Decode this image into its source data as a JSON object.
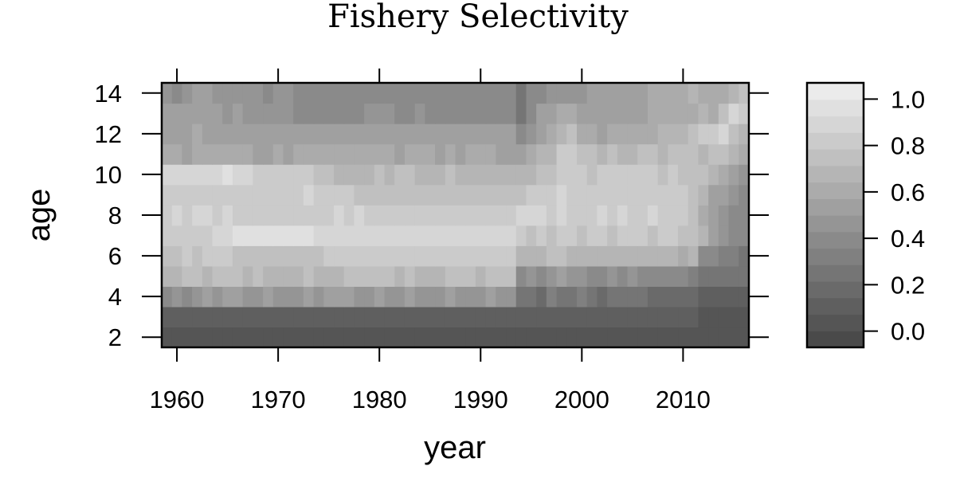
{
  "chart_data": {
    "type": "heatmap",
    "title": "Fishery Selectivity",
    "xlabel": "year",
    "ylabel": "age",
    "x_ticks": [
      1960,
      1970,
      1980,
      1990,
      2000,
      2010
    ],
    "y_ticks": [
      2,
      4,
      6,
      8,
      10,
      12,
      14
    ],
    "xlim": [
      1958.5,
      2016.5
    ],
    "ylim": [
      1.5,
      14.5
    ],
    "colorbar_ticks": [
      0.0,
      0.2,
      0.4,
      0.6,
      0.8,
      1.0
    ],
    "colorbar_tick_labels": [
      "0.0",
      "0.2",
      "0.4",
      "0.6",
      "0.8",
      "1.0"
    ],
    "colorbar_range": [
      -0.07,
      1.07
    ],
    "color_low": "#4a4a4a",
    "color_high": "#ebebeb",
    "grid": false,
    "years": [
      1959,
      1960,
      1961,
      1962,
      1963,
      1964,
      1965,
      1966,
      1967,
      1968,
      1969,
      1970,
      1971,
      1972,
      1973,
      1974,
      1975,
      1976,
      1977,
      1978,
      1979,
      1980,
      1981,
      1982,
      1983,
      1984,
      1985,
      1986,
      1987,
      1988,
      1989,
      1990,
      1991,
      1992,
      1993,
      1994,
      1995,
      1996,
      1997,
      1998,
      1999,
      2000,
      2001,
      2002,
      2003,
      2004,
      2005,
      2006,
      2007,
      2008,
      2009,
      2010,
      2011,
      2012,
      2013,
      2014,
      2015,
      2016
    ],
    "ages": [
      2,
      3,
      4,
      5,
      6,
      7,
      8,
      9,
      10,
      11,
      12,
      13,
      14
    ],
    "values": [
      [
        0,
        0,
        0,
        0,
        0,
        0,
        0,
        0,
        0,
        0,
        0,
        0,
        0,
        0,
        0,
        0,
        0,
        0,
        0,
        0,
        0,
        0,
        0,
        0,
        0,
        0,
        0,
        0,
        0,
        0,
        0,
        0,
        0,
        0,
        0,
        0,
        0,
        0,
        0,
        0,
        0,
        0,
        0,
        0,
        0,
        0,
        0,
        0,
        0,
        0,
        0,
        0,
        0,
        0,
        0,
        0,
        0,
        0
      ],
      [
        0.1,
        0.1,
        0.1,
        0.1,
        0.1,
        0.1,
        0.1,
        0.1,
        0.1,
        0.1,
        0.1,
        0.1,
        0.1,
        0.1,
        0.1,
        0.1,
        0.1,
        0.1,
        0.1,
        0.1,
        0.1,
        0.1,
        0.1,
        0.1,
        0.1,
        0.1,
        0.1,
        0.1,
        0.1,
        0.1,
        0.1,
        0.1,
        0.1,
        0.1,
        0.1,
        0.1,
        0.1,
        0.1,
        0.1,
        0.1,
        0.1,
        0.1,
        0.1,
        0.1,
        0.1,
        0.1,
        0.1,
        0.1,
        0.1,
        0.1,
        0.1,
        0.1,
        0.1,
        0.03,
        0.03,
        0.03,
        0.03,
        0.03
      ],
      [
        0.4,
        0.45,
        0.42,
        0.45,
        0.5,
        0.45,
        0.5,
        0.52,
        0.45,
        0.48,
        0.5,
        0.45,
        0.48,
        0.45,
        0.5,
        0.45,
        0.5,
        0.55,
        0.5,
        0.48,
        0.45,
        0.5,
        0.45,
        0.45,
        0.5,
        0.45,
        0.48,
        0.45,
        0.5,
        0.45,
        0.48,
        0.45,
        0.5,
        0.48,
        0.45,
        0.2,
        0.25,
        0.15,
        0.3,
        0.2,
        0.25,
        0.3,
        0.25,
        0.15,
        0.2,
        0.25,
        0.2,
        0.25,
        0.15,
        0.15,
        0.15,
        0.15,
        0.15,
        0.1,
        0.1,
        0.1,
        0.1,
        0.1
      ],
      [
        0.7,
        0.72,
        0.75,
        0.74,
        0.72,
        0.74,
        0.75,
        0.74,
        0.72,
        0.74,
        0.7,
        0.72,
        0.7,
        0.72,
        0.74,
        0.72,
        0.7,
        0.72,
        0.75,
        0.74,
        0.78,
        0.76,
        0.74,
        0.72,
        0.74,
        0.72,
        0.7,
        0.72,
        0.74,
        0.76,
        0.74,
        0.72,
        0.74,
        0.76,
        0.74,
        0.4,
        0.45,
        0.35,
        0.45,
        0.5,
        0.48,
        0.45,
        0.4,
        0.42,
        0.45,
        0.4,
        0.45,
        0.42,
        0.4,
        0.35,
        0.35,
        0.35,
        0.3,
        0.2,
        0.2,
        0.2,
        0.2,
        0.2
      ],
      [
        0.78,
        0.8,
        0.82,
        0.8,
        0.82,
        0.84,
        0.82,
        0.8,
        0.78,
        0.8,
        0.76,
        0.78,
        0.76,
        0.78,
        0.76,
        0.8,
        0.82,
        0.84,
        0.82,
        0.86,
        0.88,
        0.86,
        0.84,
        0.86,
        0.88,
        0.85,
        0.86,
        0.84,
        0.86,
        0.85,
        0.86,
        0.88,
        0.86,
        0.88,
        0.88,
        0.7,
        0.72,
        0.7,
        0.74,
        0.76,
        0.72,
        0.7,
        0.72,
        0.7,
        0.72,
        0.68,
        0.7,
        0.72,
        0.68,
        0.7,
        0.68,
        0.65,
        0.7,
        0.4,
        0.35,
        0.3,
        0.3,
        0.25
      ],
      [
        0.82,
        0.86,
        0.88,
        0.86,
        0.88,
        0.9,
        0.92,
        0.96,
        0.96,
        0.96,
        0.96,
        0.96,
        0.96,
        0.96,
        0.96,
        0.95,
        0.95,
        0.95,
        0.95,
        0.95,
        0.95,
        0.95,
        0.95,
        0.95,
        0.95,
        0.95,
        0.95,
        0.95,
        0.95,
        0.95,
        0.95,
        0.95,
        0.95,
        0.95,
        0.95,
        0.82,
        0.8,
        0.82,
        0.8,
        0.82,
        0.84,
        0.8,
        0.82,
        0.84,
        0.8,
        0.82,
        0.86,
        0.84,
        0.8,
        0.82,
        0.84,
        0.8,
        0.78,
        0.7,
        0.5,
        0.45,
        0.4,
        0.4
      ],
      [
        0.86,
        0.9,
        0.88,
        0.9,
        0.9,
        0.88,
        0.9,
        0.88,
        0.87,
        0.88,
        0.88,
        0.88,
        0.88,
        0.88,
        0.86,
        0.87,
        0.88,
        0.9,
        0.88,
        0.89,
        0.88,
        0.87,
        0.86,
        0.88,
        0.87,
        0.86,
        0.87,
        0.88,
        0.87,
        0.86,
        0.88,
        0.88,
        0.87,
        0.88,
        0.88,
        0.92,
        0.9,
        0.9,
        0.88,
        0.9,
        0.88,
        0.86,
        0.88,
        0.9,
        0.88,
        0.9,
        0.86,
        0.88,
        0.9,
        0.86,
        0.88,
        0.85,
        0.78,
        0.65,
        0.55,
        0.45,
        0.4,
        0.35
      ],
      [
        0.88,
        0.86,
        0.84,
        0.86,
        0.84,
        0.86,
        0.85,
        0.84,
        0.86,
        0.84,
        0.86,
        0.88,
        0.86,
        0.88,
        0.9,
        0.86,
        0.82,
        0.82,
        0.82,
        0.8,
        0.8,
        0.8,
        0.8,
        0.8,
        0.8,
        0.8,
        0.8,
        0.8,
        0.8,
        0.8,
        0.8,
        0.8,
        0.8,
        0.8,
        0.8,
        0.8,
        0.84,
        0.88,
        0.86,
        0.9,
        0.88,
        0.86,
        0.84,
        0.86,
        0.82,
        0.84,
        0.86,
        0.88,
        0.84,
        0.86,
        0.84,
        0.86,
        0.8,
        0.7,
        0.55,
        0.5,
        0.45,
        0.4
      ],
      [
        0.92,
        0.92,
        0.9,
        0.9,
        0.94,
        0.94,
        0.96,
        0.94,
        0.9,
        0.86,
        0.86,
        0.84,
        0.84,
        0.82,
        0.84,
        0.8,
        0.74,
        0.72,
        0.72,
        0.72,
        0.72,
        0.74,
        0.72,
        0.74,
        0.74,
        0.72,
        0.7,
        0.72,
        0.74,
        0.72,
        0.72,
        0.72,
        0.72,
        0.72,
        0.72,
        0.68,
        0.7,
        0.78,
        0.8,
        0.82,
        0.86,
        0.82,
        0.8,
        0.84,
        0.88,
        0.86,
        0.84,
        0.86,
        0.82,
        0.8,
        0.82,
        0.8,
        0.76,
        0.74,
        0.7,
        0.6,
        0.5,
        0.45
      ],
      [
        0.58,
        0.6,
        0.56,
        0.6,
        0.58,
        0.62,
        0.64,
        0.62,
        0.6,
        0.56,
        0.56,
        0.58,
        0.56,
        0.58,
        0.6,
        0.58,
        0.62,
        0.64,
        0.6,
        0.58,
        0.6,
        0.58,
        0.58,
        0.56,
        0.58,
        0.6,
        0.58,
        0.56,
        0.58,
        0.56,
        0.58,
        0.6,
        0.58,
        0.56,
        0.56,
        0.52,
        0.58,
        0.68,
        0.72,
        0.86,
        0.82,
        0.78,
        0.76,
        0.72,
        0.76,
        0.72,
        0.7,
        0.74,
        0.78,
        0.72,
        0.74,
        0.78,
        0.76,
        0.72,
        0.74,
        0.76,
        0.7,
        0.6
      ],
      [
        0.52,
        0.54,
        0.56,
        0.58,
        0.56,
        0.56,
        0.52,
        0.52,
        0.5,
        0.5,
        0.5,
        0.5,
        0.5,
        0.5,
        0.5,
        0.5,
        0.5,
        0.52,
        0.54,
        0.56,
        0.54,
        0.56,
        0.54,
        0.52,
        0.54,
        0.56,
        0.52,
        0.52,
        0.52,
        0.52,
        0.52,
        0.52,
        0.52,
        0.52,
        0.5,
        0.35,
        0.45,
        0.55,
        0.65,
        0.68,
        0.8,
        0.6,
        0.58,
        0.56,
        0.58,
        0.6,
        0.62,
        0.58,
        0.64,
        0.66,
        0.7,
        0.72,
        0.74,
        0.82,
        0.88,
        0.9,
        0.75,
        0.7
      ],
      [
        0.55,
        0.52,
        0.5,
        0.52,
        0.5,
        0.52,
        0.48,
        0.5,
        0.46,
        0.44,
        0.44,
        0.44,
        0.44,
        0.42,
        0.4,
        0.38,
        0.38,
        0.38,
        0.4,
        0.42,
        0.44,
        0.44,
        0.44,
        0.42,
        0.42,
        0.44,
        0.42,
        0.42,
        0.42,
        0.42,
        0.4,
        0.42,
        0.4,
        0.4,
        0.4,
        0.25,
        0.42,
        0.5,
        0.55,
        0.62,
        0.58,
        0.56,
        0.54,
        0.52,
        0.54,
        0.56,
        0.52,
        0.54,
        0.58,
        0.6,
        0.64,
        0.62,
        0.6,
        0.7,
        0.65,
        0.8,
        0.95,
        0.85
      ],
      [
        0.46,
        0.42,
        0.48,
        0.5,
        0.5,
        0.48,
        0.46,
        0.46,
        0.44,
        0.44,
        0.42,
        0.44,
        0.44,
        0.42,
        0.4,
        0.36,
        0.36,
        0.36,
        0.38,
        0.38,
        0.36,
        0.4,
        0.4,
        0.4,
        0.4,
        0.4,
        0.4,
        0.4,
        0.4,
        0.38,
        0.38,
        0.4,
        0.38,
        0.38,
        0.36,
        0.2,
        0.35,
        0.4,
        0.45,
        0.48,
        0.46,
        0.48,
        0.5,
        0.52,
        0.56,
        0.54,
        0.52,
        0.56,
        0.58,
        0.6,
        0.62,
        0.64,
        0.66,
        0.6,
        0.62,
        0.64,
        0.7,
        0.8
      ]
    ]
  }
}
